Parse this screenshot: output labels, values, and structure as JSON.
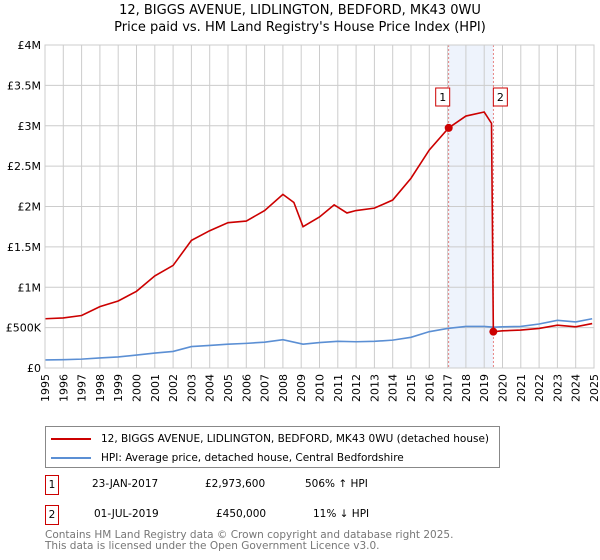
{
  "title_line1": "12, BIGGS AVENUE, LIDLINGTON, BEDFORD, MK43 0WU",
  "title_line2": "Price paid vs. HM Land Registry's House Price Index (HPI)",
  "colors": {
    "property": "#cc0000",
    "hpi": "#5b8fd4",
    "shade": "#eef3fc"
  },
  "chart_data": {
    "type": "line",
    "xlim": [
      1995,
      2025
    ],
    "ylim": [
      0,
      4000000
    ],
    "yticks": [
      {
        "v": 0,
        "label": "£0"
      },
      {
        "v": 500000,
        "label": "£500K"
      },
      {
        "v": 1000000,
        "label": "£1M"
      },
      {
        "v": 1500000,
        "label": "£1.5M"
      },
      {
        "v": 2000000,
        "label": "£2M"
      },
      {
        "v": 2500000,
        "label": "£2.5M"
      },
      {
        "v": 3000000,
        "label": "£3M"
      },
      {
        "v": 3500000,
        "label": "£3.5M"
      },
      {
        "v": 4000000,
        "label": "£4M"
      }
    ],
    "xticks": [
      "1995",
      "1996",
      "1997",
      "1998",
      "1999",
      "2000",
      "2001",
      "2002",
      "2003",
      "2004",
      "2005",
      "2006",
      "2007",
      "2008",
      "2009",
      "2010",
      "2011",
      "2012",
      "2013",
      "2014",
      "2015",
      "2016",
      "2017",
      "2018",
      "2019",
      "2020",
      "2021",
      "2022",
      "2023",
      "2024",
      "2025"
    ],
    "series": [
      {
        "name": "12, BIGGS AVENUE, LIDLINGTON, BEDFORD, MK43 0WU (detached house)",
        "x": [
          1995,
          1996,
          1997,
          1998,
          1999,
          2000,
          2001,
          2002,
          2003,
          2004,
          2005,
          2006,
          2007,
          2008,
          2008.6,
          2009.1,
          2010,
          2010.8,
          2011.5,
          2012,
          2013,
          2014,
          2015,
          2016,
          2017.06,
          2018,
          2019,
          2019.4,
          2019.5,
          2020,
          2021,
          2022,
          2023,
          2024,
          2024.9
        ],
        "y": [
          610000,
          620000,
          650000,
          760000,
          830000,
          950000,
          1140000,
          1270000,
          1580000,
          1700000,
          1800000,
          1820000,
          1950000,
          2150000,
          2050000,
          1750000,
          1870000,
          2020000,
          1920000,
          1950000,
          1980000,
          2080000,
          2350000,
          2700000,
          2973600,
          3120000,
          3170000,
          3030000,
          450000,
          460000,
          470000,
          490000,
          530000,
          510000,
          550000
        ]
      },
      {
        "name": "HPI: Average price, detached house, Central Bedfordshire",
        "x": [
          1995,
          1996,
          1997,
          1998,
          1999,
          2000,
          2001,
          2002,
          2003,
          2004,
          2005,
          2006,
          2007,
          2008,
          2009.1,
          2010,
          2011,
          2012,
          2013,
          2014,
          2015,
          2016,
          2017,
          2018,
          2019,
          2019.5,
          2020,
          2021,
          2022,
          2023,
          2024,
          2024.9
        ],
        "y": [
          100000,
          103000,
          110000,
          125000,
          137000,
          160000,
          185000,
          205000,
          265000,
          280000,
          295000,
          305000,
          320000,
          350000,
          295000,
          315000,
          330000,
          325000,
          330000,
          345000,
          380000,
          450000,
          490000,
          515000,
          515000,
          505000,
          510000,
          515000,
          545000,
          590000,
          570000,
          610000
        ]
      }
    ],
    "sales": [
      {
        "id": "1",
        "x": 2017.06,
        "y": 2973600
      },
      {
        "id": "2",
        "x": 2019.5,
        "y": 450000
      }
    ]
  },
  "legend": {
    "property": "12, BIGGS AVENUE, LIDLINGTON, BEDFORD, MK43 0WU (detached house)",
    "hpi": "HPI: Average price, detached house, Central Bedfordshire"
  },
  "transactions": [
    {
      "id": "1",
      "date": "23-JAN-2017",
      "price": "£2,973,600",
      "hpi": "506% ↑ HPI"
    },
    {
      "id": "2",
      "date": "01-JUL-2019",
      "price": "£450,000",
      "hpi": "11% ↓ HPI"
    }
  ],
  "footer": {
    "line1": "Contains HM Land Registry data © Crown copyright and database right 2025.",
    "line2": "This data is licensed under the Open Government Licence v3.0."
  }
}
